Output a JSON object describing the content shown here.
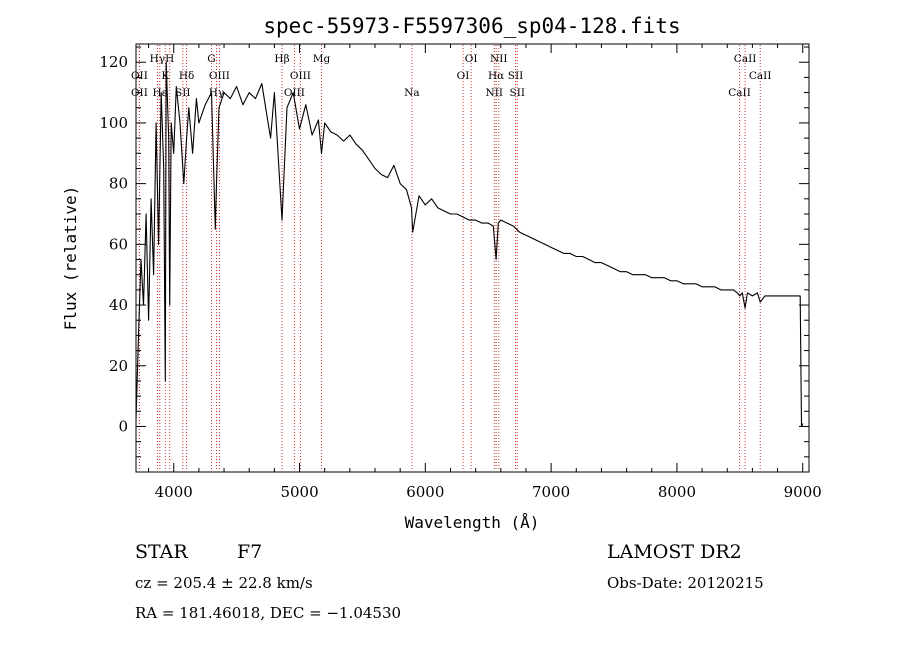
{
  "chart_data": {
    "type": "line",
    "title": "spec-55973-F5597306_sp04-128.fits",
    "xlabel": "Wavelength (Å)",
    "ylabel": "Flux (relative)",
    "xlim": [
      3700,
      9050
    ],
    "ylim": [
      -15,
      126
    ],
    "xticks": [
      4000,
      5000,
      6000,
      7000,
      8000,
      9000
    ],
    "yticks": [
      0,
      20,
      40,
      60,
      80,
      100,
      120
    ],
    "grid": false,
    "series": [
      {
        "name": "flux",
        "x": [
          3700,
          3720,
          3740,
          3760,
          3780,
          3800,
          3820,
          3840,
          3860,
          3880,
          3900,
          3920,
          3933,
          3940,
          3960,
          3968,
          3980,
          4000,
          4020,
          4050,
          4080,
          4102,
          4120,
          4150,
          4180,
          4200,
          4250,
          4300,
          4330,
          4340,
          4360,
          4400,
          4450,
          4500,
          4550,
          4600,
          4650,
          4700,
          4750,
          4770,
          4800,
          4861,
          4900,
          4950,
          5000,
          5050,
          5100,
          5150,
          5175,
          5200,
          5250,
          5300,
          5350,
          5400,
          5450,
          5500,
          5550,
          5600,
          5650,
          5700,
          5750,
          5800,
          5850,
          5890,
          5900,
          5950,
          6000,
          6050,
          6100,
          6150,
          6200,
          6250,
          6300,
          6350,
          6400,
          6450,
          6500,
          6540,
          6563,
          6580,
          6600,
          6650,
          6700,
          6750,
          6800,
          6850,
          6900,
          6950,
          7000,
          7050,
          7100,
          7150,
          7200,
          7250,
          7300,
          7350,
          7400,
          7450,
          7500,
          7550,
          7600,
          7650,
          7700,
          7750,
          7800,
          7850,
          7900,
          7950,
          8000,
          8050,
          8100,
          8150,
          8200,
          8250,
          8300,
          8350,
          8400,
          8450,
          8480,
          8500,
          8520,
          8542,
          8560,
          8600,
          8640,
          8662,
          8700,
          8750,
          8800,
          8850,
          8900,
          8950,
          8980,
          8990,
          9000
        ],
        "y": [
          2,
          30,
          55,
          40,
          70,
          35,
          75,
          50,
          100,
          60,
          110,
          85,
          15,
          120,
          95,
          40,
          100,
          90,
          112,
          100,
          80,
          95,
          105,
          90,
          108,
          100,
          106,
          110,
          65,
          80,
          105,
          110,
          108,
          112,
          106,
          110,
          108,
          113,
          100,
          95,
          110,
          68,
          105,
          110,
          98,
          106,
          96,
          101,
          90,
          100,
          97,
          96,
          94,
          96,
          93,
          91,
          88,
          85,
          83,
          82,
          86,
          80,
          78,
          72,
          64,
          76,
          73,
          75,
          72,
          71,
          70,
          70,
          69,
          68,
          68,
          67,
          67,
          66,
          55,
          67,
          68,
          67,
          66,
          64,
          63,
          62,
          61,
          60,
          59,
          58,
          57,
          57,
          56,
          56,
          55,
          54,
          54,
          53,
          52,
          51,
          51,
          50,
          50,
          50,
          49,
          49,
          49,
          48,
          48,
          47,
          47,
          47,
          46,
          46,
          46,
          45,
          45,
          45,
          44,
          43,
          44,
          39,
          44,
          43,
          44,
          41,
          43,
          43,
          43,
          43,
          43,
          43,
          43,
          0,
          1
        ]
      }
    ],
    "line_markers": [
      {
        "label": "Hγ",
        "x": 3870,
        "row": 1
      },
      {
        "label": "OII",
        "x": 3727,
        "row": 2
      },
      {
        "label": "OII",
        "x": 3727,
        "row": 3
      },
      {
        "label": "H",
        "x": 3968,
        "row": 1
      },
      {
        "label": "K",
        "x": 3933,
        "row": 2
      },
      {
        "label": "Hε",
        "x": 3889,
        "row": 3
      },
      {
        "label": "Hδ",
        "x": 4102,
        "row": 2
      },
      {
        "label": "SII",
        "x": 4072,
        "row": 3
      },
      {
        "label": "G",
        "x": 4300,
        "row": 1
      },
      {
        "label": "OIII",
        "x": 4363,
        "row": 2
      },
      {
        "label": "Hγ",
        "x": 4340,
        "row": 3
      },
      {
        "label": "Hβ",
        "x": 4861,
        "row": 1
      },
      {
        "label": "Mg",
        "x": 5175,
        "row": 1
      },
      {
        "label": "OIII",
        "x": 5007,
        "row": 2
      },
      {
        "label": "OIII",
        "x": 4959,
        "row": 3
      },
      {
        "label": "Na",
        "x": 5893,
        "row": 3
      },
      {
        "label": "OI",
        "x": 6364,
        "row": 1
      },
      {
        "label": "OI",
        "x": 6300,
        "row": 2
      },
      {
        "label": "NII",
        "x": 6584,
        "row": 1
      },
      {
        "label": "Hα",
        "x": 6563,
        "row": 2
      },
      {
        "label": "NII",
        "x": 6548,
        "row": 3
      },
      {
        "label": "SII",
        "x": 6717,
        "row": 2
      },
      {
        "label": "SII",
        "x": 6731,
        "row": 3
      },
      {
        "label": "CaII",
        "x": 8542,
        "row": 1
      },
      {
        "label": "CaII",
        "x": 8662,
        "row": 2
      },
      {
        "label": "CaII",
        "x": 8498,
        "row": 3
      }
    ],
    "colors": {
      "line": "#000000",
      "marker_line": "#cc3333",
      "axes": "#000000"
    }
  },
  "info": {
    "object_class": "STAR",
    "subclass": "F7",
    "survey": "LAMOST DR2",
    "redshift": "cz = 205.4 ± 22.8 km/s",
    "obs_date": "Obs-Date: 20120215",
    "coords": "RA = 181.46018, DEC =  −1.04530"
  }
}
